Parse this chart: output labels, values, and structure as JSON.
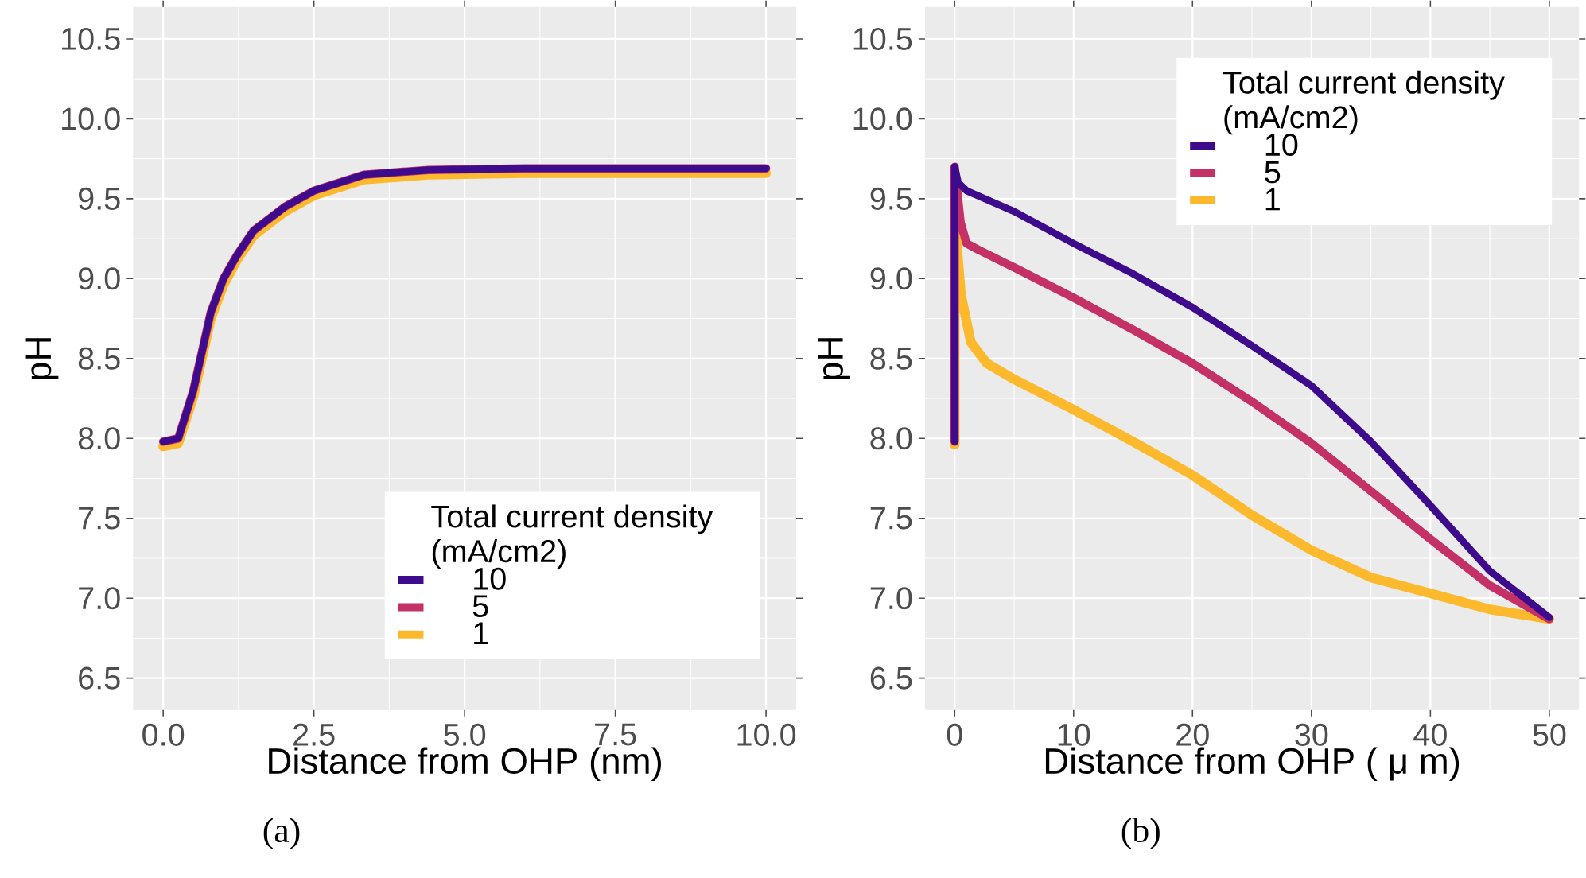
{
  "chart_data": [
    {
      "type": "line",
      "xlabel": "Distance from OHP (nm)",
      "ylabel": "pH",
      "legend_title": "Total current density (mA/cm2)",
      "legend": "bottom right",
      "grid": true,
      "annotations": [
        "(a)"
      ],
      "xlim": [
        -0.5,
        10.5
      ],
      "ylim": [
        6.3,
        10.7
      ],
      "xticks": [
        {
          "value": 0,
          "label": "0.0"
        },
        2.5,
        {
          "value": 5,
          "label": "5.0"
        },
        7.5,
        {
          "value": 10,
          "label": "10.0"
        }
      ],
      "yticks": [
        6.5,
        {
          "value": 7,
          "label": "7.0"
        },
        7.5,
        {
          "value": 8,
          "label": "8.0"
        },
        8.5,
        {
          "value": 9,
          "label": "9.0"
        },
        9.5,
        {
          "value": 10,
          "label": "10.0"
        },
        10.5
      ],
      "series": [
        {
          "name": "10",
          "color": "#3d0b8c",
          "x": [
            0,
            0.25,
            0.5,
            0.79,
            1.0,
            1.23,
            1.5,
            2.02,
            2.5,
            3.33,
            4.4,
            6,
            8,
            10
          ],
          "values": [
            7.98,
            8.0,
            8.3,
            8.79,
            9.0,
            9.15,
            9.3,
            9.45,
            9.55,
            9.65,
            9.68,
            9.69,
            9.69,
            9.69
          ]
        },
        {
          "name": "5",
          "color": "#c33166",
          "x": [
            0,
            0.25,
            0.5,
            0.79,
            1.0,
            1.23,
            1.5,
            2.02,
            2.5,
            3.33,
            4.4,
            6,
            8,
            10
          ],
          "values": [
            7.98,
            8.0,
            8.3,
            8.79,
            9.0,
            9.15,
            9.3,
            9.45,
            9.55,
            9.65,
            9.68,
            9.69,
            9.69,
            9.69
          ]
        },
        {
          "name": "1",
          "color": "#fdb92e",
          "x": [
            0,
            0.25,
            0.5,
            0.79,
            1.0,
            1.23,
            1.5,
            2.02,
            2.5,
            3.33,
            4.4,
            6,
            8,
            10
          ],
          "values": [
            7.95,
            7.97,
            8.26,
            8.75,
            8.96,
            9.12,
            9.27,
            9.42,
            9.52,
            9.62,
            9.65,
            9.66,
            9.66,
            9.66
          ]
        }
      ]
    },
    {
      "type": "line",
      "xlabel": "Distance from OHP ( μ m)",
      "ylabel": "pH",
      "legend_title": "Total current density (mA/cm2)",
      "legend": "top right",
      "grid": true,
      "annotations": [
        "(b)"
      ],
      "xlim": [
        -2.5,
        52.5
      ],
      "ylim": [
        6.3,
        10.7
      ],
      "xticks": [
        0,
        10,
        20,
        30,
        40,
        50
      ],
      "yticks": [
        6.5,
        {
          "value": 7,
          "label": "7.0"
        },
        7.5,
        {
          "value": 8,
          "label": "8.0"
        },
        8.5,
        {
          "value": 9,
          "label": "9.0"
        },
        9.5,
        {
          "value": 10,
          "label": "10.0"
        },
        10.5
      ],
      "series": [
        {
          "name": "10",
          "color": "#3d0b8c",
          "x": [
            0,
            0,
            0.3,
            1,
            5,
            10,
            15,
            20,
            25,
            30,
            35,
            40,
            45,
            50
          ],
          "values": [
            7.98,
            9.7,
            9.6,
            9.55,
            9.42,
            9.22,
            9.03,
            8.82,
            8.58,
            8.33,
            7.98,
            7.58,
            7.17,
            6.88
          ]
        },
        {
          "name": "5",
          "color": "#c33166",
          "x": [
            0,
            0,
            0.5,
            1,
            2,
            5,
            10,
            15,
            20,
            25,
            30,
            35,
            40,
            45,
            50
          ],
          "values": [
            7.98,
            9.7,
            9.35,
            9.22,
            9.18,
            9.07,
            8.88,
            8.68,
            8.47,
            8.23,
            7.97,
            7.67,
            7.37,
            7.08,
            6.87
          ]
        },
        {
          "name": "1",
          "color": "#fdb92e",
          "x": [
            0,
            0,
            0.2,
            0.53,
            1.37,
            2.7,
            5,
            10,
            15,
            20,
            25,
            30,
            35,
            40,
            45,
            50
          ],
          "values": [
            7.96,
            9.5,
            9.2,
            8.9,
            8.6,
            8.47,
            8.37,
            8.18,
            7.98,
            7.77,
            7.52,
            7.3,
            7.13,
            7.03,
            6.93,
            6.87
          ]
        }
      ]
    }
  ]
}
